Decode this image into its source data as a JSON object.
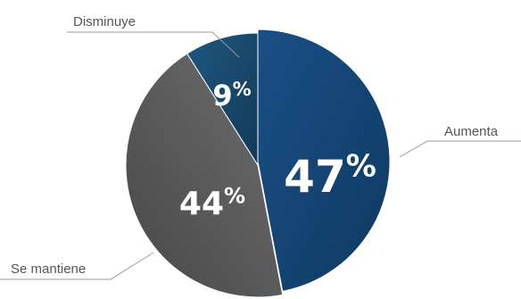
{
  "chart_data": {
    "type": "pie",
    "title": "",
    "slices": [
      {
        "label": "Aumenta",
        "value": 47,
        "value_label": "47",
        "unit": "%",
        "color_start": "#1a4f86",
        "color_end": "#0e3a61"
      },
      {
        "label": "Se mantiene",
        "value": 44,
        "value_label": "44",
        "unit": "%",
        "color_start": "#4d4d4d",
        "color_end": "#6e6e6e"
      },
      {
        "label": "Disminuye",
        "value": 9,
        "value_label": "9",
        "unit": "%",
        "color_start": "#1b4e74",
        "color_end": "#123a58"
      }
    ],
    "start_angle_deg": 0,
    "direction": "clockwise",
    "exploded_slice": "Aumenta"
  }
}
